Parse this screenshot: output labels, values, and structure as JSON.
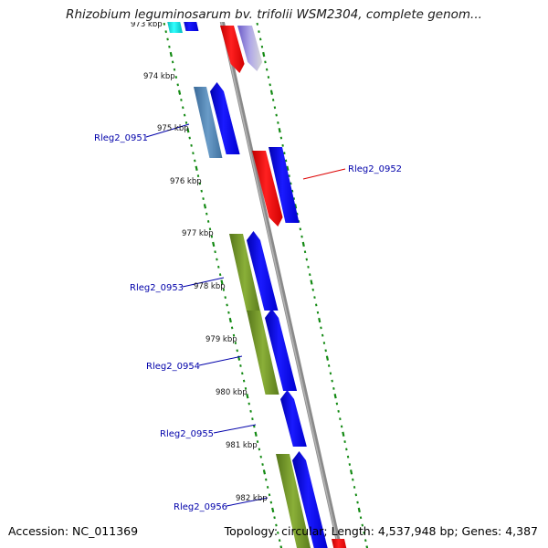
{
  "title": "Rhizobium leguminosarum bv. trifolii WSM2304, complete genom...",
  "top_partial_kbp_label": "973 kbp",
  "kbp_labels": [
    "974 kbp",
    "975 kbp",
    "976 kbp",
    "977 kbp",
    "978 kbp",
    "979 kbp",
    "980 kbp",
    "981 kbp",
    "982 kbp"
  ],
  "gene_labels": [
    "Rleg2_0951",
    "Rleg2_0952",
    "Rleg2_0953",
    "Rleg2_0954",
    "Rleg2_0955",
    "Rleg2_0956"
  ],
  "footer": {
    "accession": "Accession: NC_011369",
    "summary": "Topology: circular; Length: 4,537,948 bp; Genes: 4,387"
  },
  "colors": {
    "backbone": "#8a8a8a",
    "forward_cds": "#0000ee",
    "reverse_cds": "#ee0000",
    "reverse_steel": "#4a7fae",
    "olive_track": "#6b8e23",
    "tick_green": "#138a13",
    "label_blue": "#0000aa",
    "leader_red": "#dd0000",
    "cyan_feature": "#00cccc",
    "purple_feature": "#8a7ad8"
  }
}
